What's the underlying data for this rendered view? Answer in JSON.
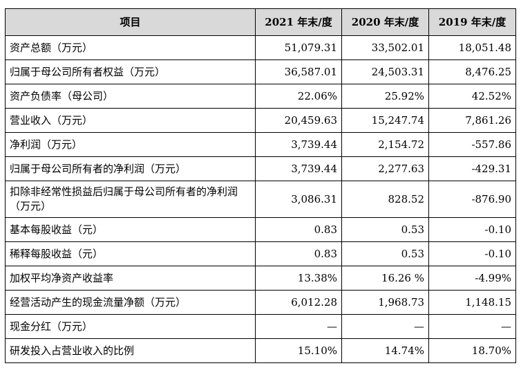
{
  "table": {
    "headers": [
      "项目",
      "2021 年末/度",
      "2020 年末/度",
      "2019 年末/度"
    ],
    "rows": [
      {
        "label": "资产总额（万元）",
        "values": [
          "51,079.31",
          "33,502.01",
          "18,051.48"
        ]
      },
      {
        "label": "归属于母公司所有者权益（万元）",
        "values": [
          "36,587.01",
          "24,503.31",
          "8,476.25"
        ]
      },
      {
        "label": "资产负债率（母公司）",
        "values": [
          "22.06%",
          "25.92%",
          "42.52%"
        ]
      },
      {
        "label": "营业收入（万元）",
        "values": [
          "20,459.63",
          "15,247.74",
          "7,861.26"
        ]
      },
      {
        "label": "净利润（万元）",
        "values": [
          "3,739.44",
          "2,154.72",
          "-557.86"
        ]
      },
      {
        "label": "归属于母公司所有者的净利润（万元）",
        "values": [
          "3,739.44",
          "2,277.63",
          "-429.31"
        ]
      },
      {
        "label": "扣除非经常性损益后归属于母公司所有者的净利润（万元）",
        "values": [
          "3,086.31",
          "828.52",
          "-876.90"
        ]
      },
      {
        "label": "基本每股收益（元）",
        "values": [
          "0.83",
          "0.53",
          "-0.10"
        ]
      },
      {
        "label": "稀释每股收益（元）",
        "values": [
          "0.83",
          "0.53",
          "-0.10"
        ]
      },
      {
        "label": "加权平均净资产收益率",
        "values": [
          "13.38%",
          "16.26 %",
          "-4.99%"
        ]
      },
      {
        "label": "经营活动产生的现金流量净额（万元）",
        "values": [
          "6,012.28",
          "1,968.73",
          "1,148.15"
        ]
      },
      {
        "label": "现金分红（万元）",
        "values": [
          "—",
          "—",
          "—"
        ]
      },
      {
        "label": "研发投入占营业收入的比例",
        "values": [
          "15.10%",
          "14.74%",
          "18.70%"
        ]
      }
    ]
  }
}
